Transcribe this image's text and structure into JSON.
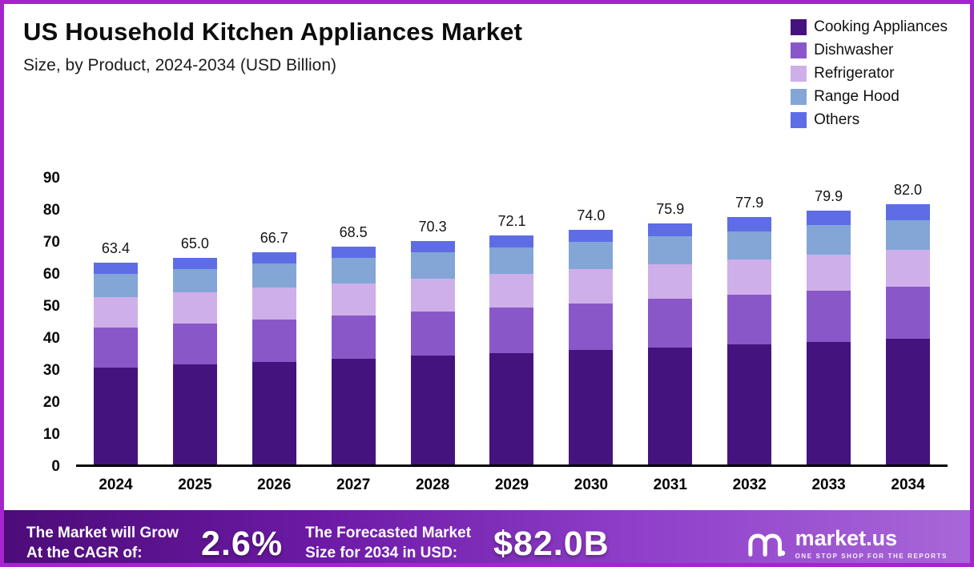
{
  "header": {
    "title": "US Household Kitchen Appliances Market",
    "subtitle": "Size, by Product, 2024-2034 (USD Billion)"
  },
  "colors": {
    "frame": "#a524ce",
    "banner_gradient": [
      "#4c0c78",
      "#6d1aa6",
      "#9040ca",
      "#a867d8"
    ]
  },
  "chart_data": {
    "type": "bar",
    "stacked": true,
    "title": "US Household Kitchen Appliances Market Size, by Product, 2024-2034 (USD Billion)",
    "unit": "USD Billion",
    "grid": false,
    "legend_position": "top-right",
    "categories": [
      "2024",
      "2025",
      "2026",
      "2027",
      "2028",
      "2029",
      "2030",
      "2031",
      "2032",
      "2033",
      "2034"
    ],
    "series": [
      {
        "name": "Cooking Appliances",
        "color": "#45137e",
        "values": [
          30.6,
          31.5,
          32.4,
          33.3,
          34.2,
          35.1,
          36.0,
          36.9,
          37.8,
          38.7,
          39.6
        ]
      },
      {
        "name": "Dishwasher",
        "color": "#8a57c9",
        "values": [
          12.4,
          12.8,
          13.2,
          13.6,
          14.0,
          14.4,
          14.8,
          15.2,
          15.6,
          16.0,
          16.4
        ]
      },
      {
        "name": "Refrigerator",
        "color": "#cfafe9",
        "values": [
          9.6,
          9.8,
          10.0,
          10.2,
          10.4,
          10.6,
          10.8,
          11.0,
          11.2,
          11.4,
          11.6
        ]
      },
      {
        "name": "Range Hood",
        "color": "#83a6d7",
        "values": [
          7.3,
          7.5,
          7.7,
          7.9,
          8.1,
          8.3,
          8.5,
          8.7,
          8.9,
          9.2,
          9.4
        ]
      },
      {
        "name": "Others",
        "color": "#5e6ce6",
        "values": [
          3.5,
          3.4,
          3.4,
          3.5,
          3.6,
          3.7,
          3.9,
          4.1,
          4.4,
          4.6,
          5.0
        ]
      }
    ],
    "totals": [
      63.4,
      65.0,
      66.7,
      68.5,
      70.3,
      72.1,
      74.0,
      75.9,
      77.9,
      79.9,
      82.0
    ],
    "ylim": [
      0,
      90
    ],
    "yticks": [
      0,
      10,
      20,
      30,
      40,
      50,
      60,
      70,
      80,
      90
    ]
  },
  "banner": {
    "growth_label_line1": "The Market will Grow",
    "growth_label_line2": "At the CAGR of:",
    "cagr_value": "2.6%",
    "forecast_label_line1": "The Forecasted Market",
    "forecast_label_line2": "Size for 2034 in USD:",
    "forecast_value": "$82.0B",
    "brand_name": "market.us",
    "brand_tagline": "ONE STOP SHOP FOR THE REPORTS"
  }
}
